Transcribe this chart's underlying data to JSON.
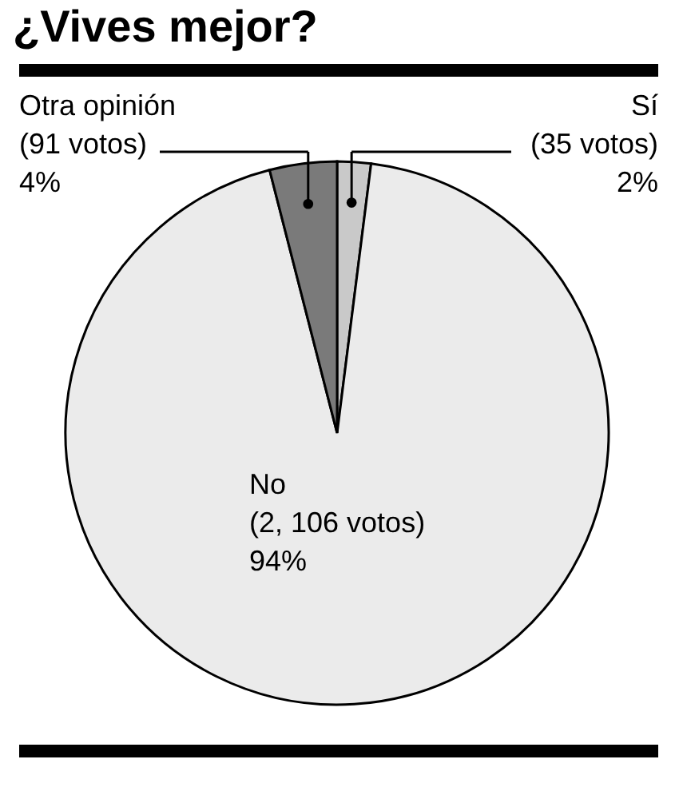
{
  "chart_data": {
    "type": "pie",
    "title": "¿Vives mejor?",
    "categories": [
      "Sí",
      "No",
      "Otra opinión"
    ],
    "values": [
      2,
      94,
      4
    ],
    "value_labels": [
      "(35 votos)\n2%",
      "(2, 106 votos)\n94%",
      "(91 votos)\n4%"
    ],
    "colors": [
      "#c9c9c9",
      "#ebebeb",
      "#7a7a7a"
    ]
  }
}
